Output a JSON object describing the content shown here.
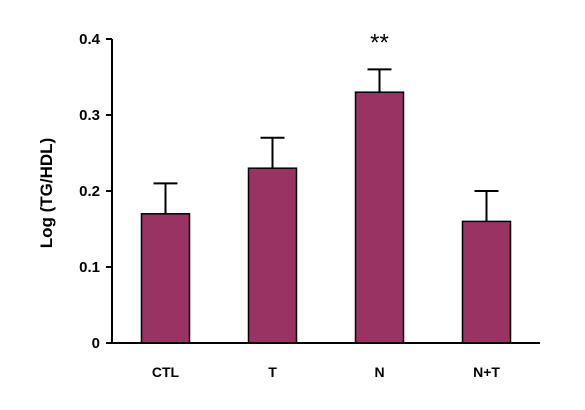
{
  "chart_data": {
    "type": "bar",
    "title": "",
    "xlabel": "",
    "ylabel": "Log (TG/HDL)",
    "ylim": [
      0,
      0.4
    ],
    "yticks": [
      "0",
      "0.1",
      "0.2",
      "0.3",
      "0.4"
    ],
    "categories": [
      "CTL",
      "T",
      "N",
      "N+T"
    ],
    "values": [
      0.17,
      0.23,
      0.33,
      0.16
    ],
    "error_bars": [
      0.04,
      0.04,
      0.03,
      0.04
    ],
    "annotations": [
      {
        "category": "N",
        "text": "**"
      }
    ],
    "grid": false,
    "colors": {
      "bar": "#983363",
      "bar_edge": "#000000",
      "axis": "#000000"
    }
  }
}
